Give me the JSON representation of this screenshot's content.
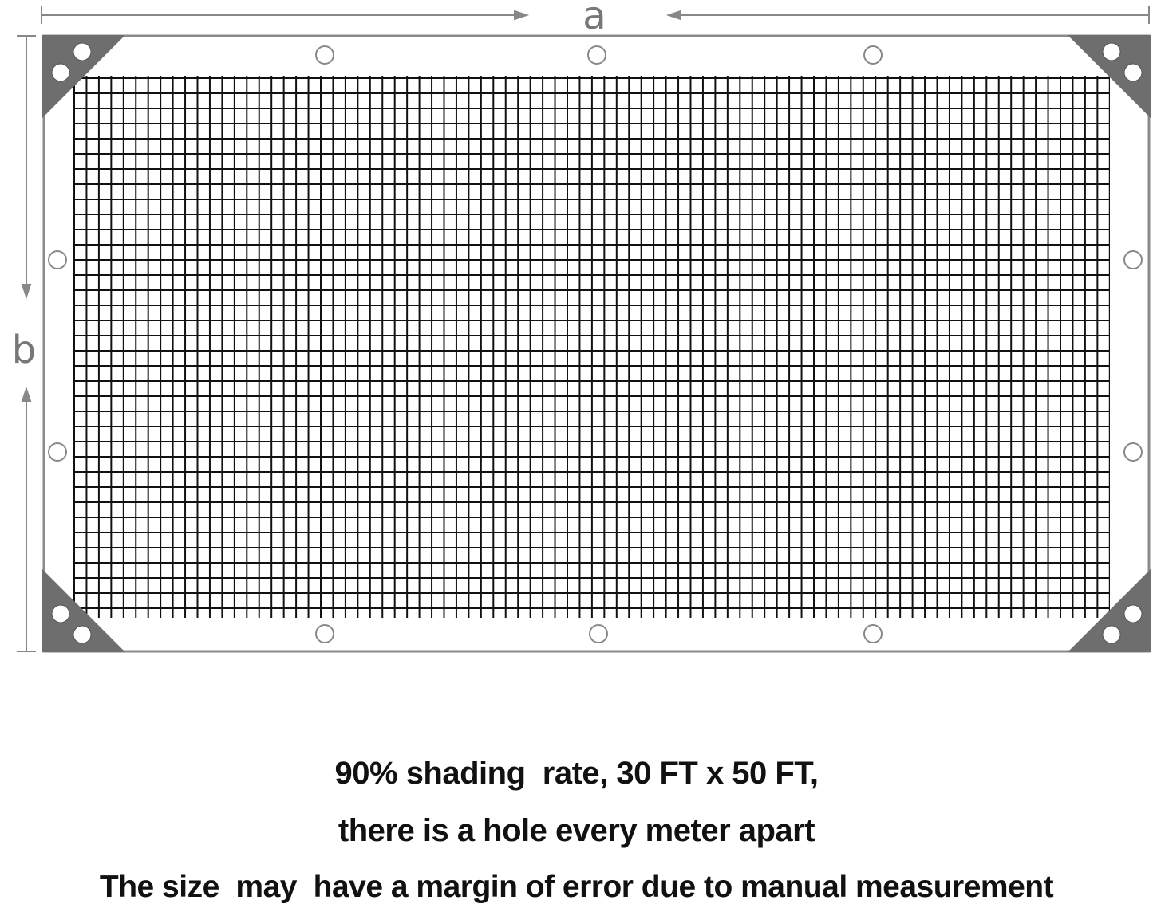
{
  "dimensions": {
    "width_label": "a",
    "height_label": "b"
  },
  "colors": {
    "frame": "#8a8a8a",
    "corner": "#6e6e6e",
    "mesh": "#111111",
    "dimension": "#888888"
  },
  "icons": {
    "corner": "corner-reinforcement-icon",
    "grommet": "grommet-icon"
  },
  "caption": {
    "line1": "90% shading  rate, 30 FT x 50 FT,",
    "line2": "there is a hole every meter apart",
    "line3": "The size  may  have a margin of error due to manual measurement"
  }
}
